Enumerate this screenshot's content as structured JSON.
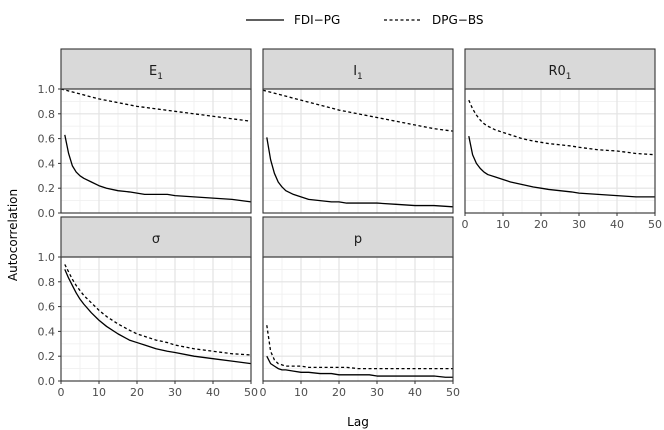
{
  "chart_data": {
    "type": "line",
    "xlabel": "Lag",
    "ylabel": "Autocorrelation",
    "xlim": [
      0,
      50
    ],
    "ylim": [
      0,
      1
    ],
    "x_ticks": [
      "0",
      "10",
      "20",
      "30",
      "40",
      "50"
    ],
    "y_ticks": [
      "0.0",
      "0.2",
      "0.4",
      "0.6",
      "0.8",
      "1.0"
    ],
    "legend": {
      "position": "top",
      "entries": [
        {
          "name": "FDI−PG",
          "linestyle": "solid"
        },
        {
          "name": "DPG−BS",
          "linestyle": "dotted"
        }
      ]
    },
    "grid": true,
    "panels": [
      {
        "title": "E",
        "subscript": "1",
        "series": [
          {
            "name": "FDI−PG",
            "x": [
              1,
              2,
              3,
              4,
              5,
              6,
              8,
              10,
              12,
              15,
              18,
              20,
              22,
              25,
              28,
              30,
              35,
              40,
              45,
              50
            ],
            "y": [
              0.63,
              0.48,
              0.38,
              0.33,
              0.3,
              0.28,
              0.25,
              0.22,
              0.2,
              0.18,
              0.17,
              0.16,
              0.15,
              0.15,
              0.15,
              0.14,
              0.13,
              0.12,
              0.11,
              0.09
            ]
          },
          {
            "name": "DPG−BS",
            "x": [
              0,
              5,
              10,
              15,
              20,
              25,
              30,
              35,
              40,
              45,
              50
            ],
            "y": [
              1.0,
              0.96,
              0.92,
              0.89,
              0.86,
              0.84,
              0.82,
              0.8,
              0.78,
              0.76,
              0.74
            ]
          }
        ]
      },
      {
        "title": "I",
        "subscript": "1",
        "series": [
          {
            "name": "FDI−PG",
            "x": [
              1,
              2,
              3,
              4,
              5,
              6,
              8,
              10,
              12,
              15,
              18,
              20,
              22,
              25,
              28,
              30,
              35,
              40,
              45,
              50
            ],
            "y": [
              0.61,
              0.43,
              0.32,
              0.25,
              0.21,
              0.18,
              0.15,
              0.13,
              0.11,
              0.1,
              0.09,
              0.09,
              0.08,
              0.08,
              0.08,
              0.08,
              0.07,
              0.06,
              0.06,
              0.05
            ]
          },
          {
            "name": "DPG−BS",
            "x": [
              0,
              5,
              10,
              15,
              20,
              25,
              30,
              35,
              40,
              45,
              50
            ],
            "y": [
              0.99,
              0.95,
              0.91,
              0.87,
              0.83,
              0.8,
              0.77,
              0.74,
              0.71,
              0.68,
              0.66
            ]
          }
        ]
      },
      {
        "title": "R0",
        "subscript": "1",
        "series": [
          {
            "name": "FDI−PG",
            "x": [
              1,
              2,
              3,
              4,
              5,
              6,
              8,
              10,
              12,
              15,
              18,
              20,
              22,
              25,
              28,
              30,
              35,
              40,
              45,
              50
            ],
            "y": [
              0.62,
              0.47,
              0.4,
              0.36,
              0.33,
              0.31,
              0.29,
              0.27,
              0.25,
              0.23,
              0.21,
              0.2,
              0.19,
              0.18,
              0.17,
              0.16,
              0.15,
              0.14,
              0.13,
              0.13
            ]
          },
          {
            "name": "DPG−BS",
            "x": [
              1,
              2,
              3,
              4,
              5,
              6,
              8,
              10,
              12,
              15,
              18,
              20,
              22,
              25,
              28,
              30,
              35,
              40,
              45,
              50
            ],
            "y": [
              0.91,
              0.84,
              0.79,
              0.75,
              0.72,
              0.7,
              0.67,
              0.65,
              0.63,
              0.6,
              0.58,
              0.57,
              0.56,
              0.55,
              0.54,
              0.53,
              0.51,
              0.5,
              0.48,
              0.47
            ]
          }
        ]
      },
      {
        "title": "σ",
        "subscript": "",
        "series": [
          {
            "name": "FDI−PG",
            "x": [
              1,
              2,
              3,
              4,
              5,
              6,
              8,
              10,
              12,
              15,
              18,
              20,
              22,
              25,
              28,
              30,
              35,
              40,
              45,
              50
            ],
            "y": [
              0.9,
              0.83,
              0.77,
              0.71,
              0.66,
              0.62,
              0.55,
              0.49,
              0.44,
              0.38,
              0.33,
              0.31,
              0.29,
              0.26,
              0.24,
              0.23,
              0.2,
              0.18,
              0.16,
              0.14
            ]
          },
          {
            "name": "DPG−BS",
            "x": [
              1,
              2,
              3,
              4,
              5,
              6,
              8,
              10,
              12,
              15,
              18,
              20,
              22,
              25,
              28,
              30,
              35,
              40,
              45,
              50
            ],
            "y": [
              0.94,
              0.88,
              0.82,
              0.77,
              0.73,
              0.69,
              0.63,
              0.57,
              0.52,
              0.46,
              0.41,
              0.38,
              0.36,
              0.33,
              0.31,
              0.29,
              0.26,
              0.24,
              0.22,
              0.21
            ]
          }
        ]
      },
      {
        "title": "p",
        "subscript": "",
        "series": [
          {
            "name": "FDI−PG",
            "x": [
              1,
              2,
              3,
              4,
              5,
              6,
              8,
              10,
              12,
              15,
              18,
              20,
              22,
              25,
              28,
              30,
              35,
              40,
              45,
              48,
              50
            ],
            "y": [
              0.2,
              0.14,
              0.12,
              0.1,
              0.09,
              0.09,
              0.08,
              0.07,
              0.07,
              0.06,
              0.06,
              0.05,
              0.05,
              0.05,
              0.05,
              0.04,
              0.04,
              0.04,
              0.04,
              0.03,
              0.03
            ]
          },
          {
            "name": "DPG−BS",
            "x": [
              1,
              2,
              3,
              4,
              5,
              6,
              8,
              10,
              12,
              15,
              18,
              20,
              22,
              25,
              28,
              30,
              35,
              40,
              45,
              50
            ],
            "y": [
              0.45,
              0.24,
              0.17,
              0.14,
              0.13,
              0.12,
              0.12,
              0.12,
              0.11,
              0.11,
              0.11,
              0.11,
              0.11,
              0.1,
              0.1,
              0.1,
              0.1,
              0.1,
              0.1,
              0.1
            ]
          }
        ]
      }
    ]
  }
}
